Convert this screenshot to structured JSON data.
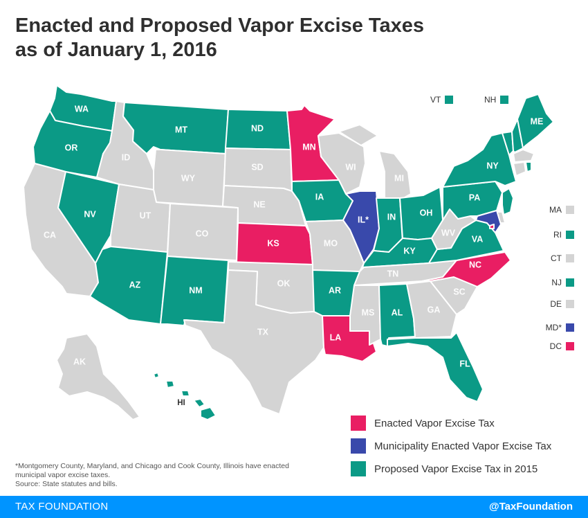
{
  "title_line1": "Enacted and Proposed Vapor Excise Taxes",
  "title_line2": "as of January 1, 2016",
  "colors": {
    "enacted": "#e91e63",
    "municipal": "#3949ab",
    "proposed": "#0b9a86",
    "none": "#d4d4d4"
  },
  "states": [
    {
      "abbr": "WA",
      "status": "proposed"
    },
    {
      "abbr": "OR",
      "status": "proposed"
    },
    {
      "abbr": "CA",
      "status": "none"
    },
    {
      "abbr": "NV",
      "status": "proposed"
    },
    {
      "abbr": "ID",
      "status": "none"
    },
    {
      "abbr": "MT",
      "status": "proposed"
    },
    {
      "abbr": "WY",
      "status": "none"
    },
    {
      "abbr": "UT",
      "status": "none"
    },
    {
      "abbr": "AZ",
      "status": "proposed"
    },
    {
      "abbr": "CO",
      "status": "none"
    },
    {
      "abbr": "NM",
      "status": "proposed"
    },
    {
      "abbr": "ND",
      "status": "proposed"
    },
    {
      "abbr": "SD",
      "status": "none"
    },
    {
      "abbr": "NE",
      "status": "none"
    },
    {
      "abbr": "KS",
      "status": "enacted"
    },
    {
      "abbr": "OK",
      "status": "none"
    },
    {
      "abbr": "TX",
      "status": "none"
    },
    {
      "abbr": "MN",
      "status": "enacted"
    },
    {
      "abbr": "IA",
      "status": "proposed"
    },
    {
      "abbr": "MO",
      "status": "none"
    },
    {
      "abbr": "AR",
      "status": "proposed"
    },
    {
      "abbr": "LA",
      "status": "enacted"
    },
    {
      "abbr": "WI",
      "status": "none"
    },
    {
      "abbr": "IL*",
      "status": "municipal"
    },
    {
      "abbr": "MI",
      "status": "none"
    },
    {
      "abbr": "IN",
      "status": "proposed"
    },
    {
      "abbr": "OH",
      "status": "proposed"
    },
    {
      "abbr": "KY",
      "status": "proposed"
    },
    {
      "abbr": "TN",
      "status": "none"
    },
    {
      "abbr": "MS",
      "status": "none"
    },
    {
      "abbr": "AL",
      "status": "proposed"
    },
    {
      "abbr": "GA",
      "status": "none"
    },
    {
      "abbr": "FL",
      "status": "proposed"
    },
    {
      "abbr": "SC",
      "status": "none"
    },
    {
      "abbr": "NC",
      "status": "enacted"
    },
    {
      "abbr": "VA",
      "status": "proposed"
    },
    {
      "abbr": "WV",
      "status": "none"
    },
    {
      "abbr": "PA",
      "status": "proposed"
    },
    {
      "abbr": "NY",
      "status": "proposed"
    },
    {
      "abbr": "ME",
      "status": "proposed"
    },
    {
      "abbr": "AK",
      "status": "none"
    },
    {
      "abbr": "HI",
      "status": "proposed"
    }
  ],
  "northeast_top": [
    {
      "abbr": "VT",
      "status": "proposed"
    },
    {
      "abbr": "NH",
      "status": "proposed"
    }
  ],
  "northeast_side": [
    {
      "abbr": "MA",
      "status": "none"
    },
    {
      "abbr": "RI",
      "status": "proposed"
    },
    {
      "abbr": "CT",
      "status": "none"
    },
    {
      "abbr": "NJ",
      "status": "proposed"
    },
    {
      "abbr": "DE",
      "status": "none"
    },
    {
      "abbr": "MD*",
      "status": "municipal"
    },
    {
      "abbr": "DC",
      "status": "enacted"
    }
  ],
  "legend": [
    {
      "label": "Enacted Vapor Excise Tax",
      "status": "enacted"
    },
    {
      "label": "Municipality Enacted Vapor Excise Tax",
      "status": "municipal"
    },
    {
      "label": "Proposed Vapor Excise Tax in 2015",
      "status": "proposed"
    }
  ],
  "footnote_line1": "*Montgomery County, Maryland, and Chicago and Cook County, Illinois have enacted",
  "footnote_line2": "municipal vapor excise taxes.",
  "footnote_line3": "Source: State statutes and bills.",
  "footer_brand": "TAX FOUNDATION",
  "footer_handle": "@TaxFoundation"
}
